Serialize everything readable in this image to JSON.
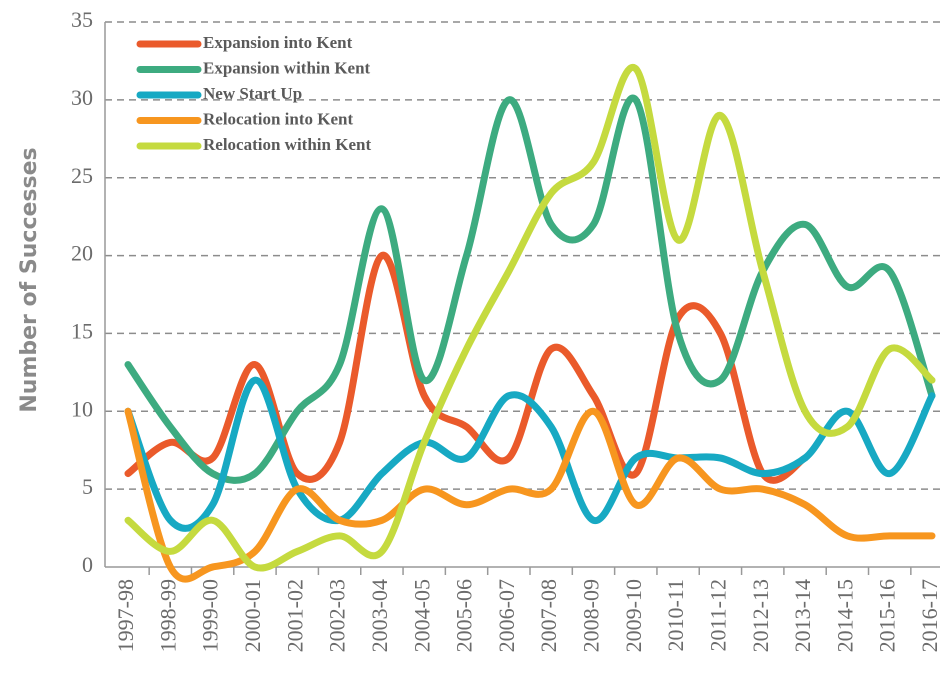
{
  "chart_data": {
    "type": "line",
    "y_label": "Number of Successes",
    "categories": [
      "1997-98",
      "1998-99",
      "1999-00",
      "2000-01",
      "2001-02",
      "2002-03",
      "2003-04",
      "2004-05",
      "2005-06",
      "2006-07",
      "2007-08",
      "2008-09",
      "2009-10",
      "2010-11",
      "2011-12",
      "2012-13",
      "2013-14",
      "2014-15",
      "2015-16",
      "2016-17"
    ],
    "series": [
      {
        "name": "Expansion into Kent",
        "color": "#ea5a2b",
        "values": [
          6,
          8,
          7,
          13,
          6,
          8,
          20,
          11,
          9,
          7,
          14,
          11,
          6,
          16,
          15,
          6,
          7,
          null,
          null,
          null
        ]
      },
      {
        "name": "Expansion within Kent",
        "color": "#3dab80",
        "values": [
          13,
          9,
          6,
          6,
          10,
          13,
          23,
          12,
          20,
          30,
          22,
          22,
          30,
          15,
          12,
          19,
          22,
          18,
          19,
          11
        ]
      },
      {
        "name": "New Start Up",
        "color": "#17a9c3",
        "values": [
          10,
          3,
          4,
          12,
          5,
          3,
          6,
          8,
          7,
          11,
          9,
          3,
          7,
          7,
          7,
          6,
          7,
          10,
          6,
          11
        ]
      },
      {
        "name": "Relocation into Kent",
        "color": "#f7961f",
        "values": [
          10,
          0,
          0,
          1,
          5,
          3,
          3,
          5,
          4,
          5,
          5,
          10,
          4,
          7,
          5,
          5,
          4,
          2,
          2,
          2
        ]
      },
      {
        "name": "Relocation within Kent",
        "color": "#c5da3f",
        "values": [
          3,
          1,
          3,
          0,
          1,
          2,
          1,
          8,
          14,
          19,
          24,
          26,
          32,
          21,
          29,
          19,
          10,
          9,
          14,
          12
        ]
      }
    ],
    "ylim": [
      0,
      35
    ],
    "yticks": [
      0,
      5,
      10,
      15,
      20,
      25,
      30,
      35
    ],
    "grid": true
  }
}
